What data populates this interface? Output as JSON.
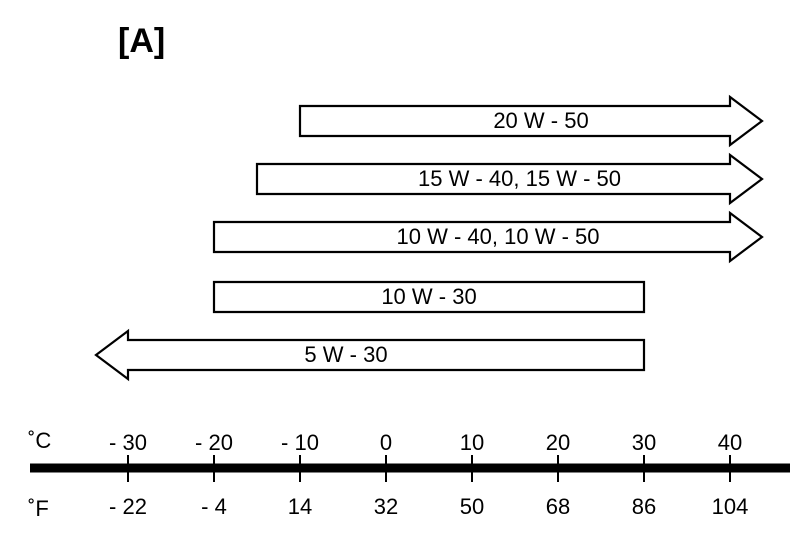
{
  "panel_label": "[A]",
  "units": {
    "celsius": "˚C",
    "fahrenheit": "˚F"
  },
  "scale_celsius": [
    "- 30",
    "- 20",
    "- 10",
    "0",
    "10",
    "20",
    "30",
    "40"
  ],
  "scale_fahrenheit": [
    "- 22",
    "- 4",
    "14",
    "32",
    "50",
    "68",
    "86",
    "104"
  ],
  "ranges": [
    {
      "label": "20 W - 50",
      "from_c": -10,
      "to_c": 40,
      "open_high": true,
      "open_low": false
    },
    {
      "label": "15 W - 40, 15 W - 50",
      "from_c": -15,
      "to_c": 40,
      "open_high": true,
      "open_low": false
    },
    {
      "label": "10 W - 40, 10 W - 50",
      "from_c": -20,
      "to_c": 40,
      "open_high": true,
      "open_low": false
    },
    {
      "label": "10 W - 30",
      "from_c": -20,
      "to_c": 30,
      "open_high": false,
      "open_low": false
    },
    {
      "label": "5 W - 30",
      "from_c": -30,
      "to_c": 30,
      "open_high": false,
      "open_low": true
    }
  ]
}
